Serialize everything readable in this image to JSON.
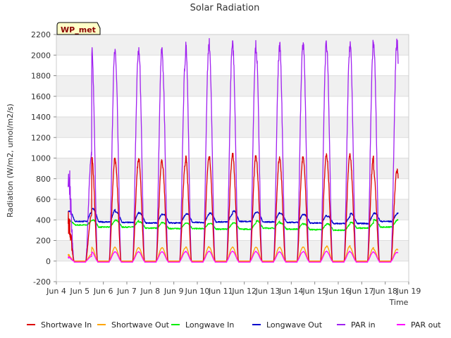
{
  "chart_data": {
    "type": "line",
    "title": "Solar Radiation",
    "xlabel": "Time",
    "ylabel": "Radiation (W/m2, umol/m2/s)",
    "badge": "WP_met",
    "ylim": [
      -200,
      2200
    ],
    "yticks": [
      -200,
      0,
      200,
      400,
      600,
      800,
      1000,
      1200,
      1400,
      1600,
      1800,
      2000,
      2200
    ],
    "xlim": [
      4,
      19
    ],
    "xticks": [
      {
        "v": 4,
        "label": "Jun 4"
      },
      {
        "v": 5,
        "label": "Jun 5"
      },
      {
        "v": 6,
        "label": "Jun 6"
      },
      {
        "v": 7,
        "label": "Jun 7"
      },
      {
        "v": 8,
        "label": "Jun 8"
      },
      {
        "v": 9,
        "label": "Jun 9"
      },
      {
        "v": 10,
        "label": "Jun 10"
      },
      {
        "v": 11,
        "label": "Jun 11"
      },
      {
        "v": 12,
        "label": "Jun 12"
      },
      {
        "v": 13,
        "label": "Jun 13"
      },
      {
        "v": 14,
        "label": "Jun 14"
      },
      {
        "v": 15,
        "label": "Jun 15"
      },
      {
        "v": 16,
        "label": "Jun 16"
      },
      {
        "v": 17,
        "label": "Jun 17"
      },
      {
        "v": 18,
        "label": "Jun 18"
      },
      {
        "v": 19,
        "label": "Jun 19"
      }
    ],
    "legend_position": "bottom",
    "x_start": 4.5,
    "x_end": 18.55,
    "series": [
      {
        "name": "Shortwave In",
        "color": "#dd0000",
        "kind": "diurnal",
        "night": 0,
        "peaks": [
          450,
          1010,
          980,
          1000,
          960,
          1020,
          1030,
          1040,
          1000,
          1010,
          1030,
          1040,
          1020,
          880
        ]
      },
      {
        "name": "Shortwave Out",
        "color": "#ffa500",
        "kind": "diurnal",
        "night": 0,
        "peaks": [
          65,
          135,
          130,
          130,
          130,
          140,
          135,
          135,
          135,
          135,
          140,
          150,
          130,
          115
        ]
      },
      {
        "name": "Longwave In",
        "color": "#00ee00",
        "kind": "wave",
        "base": [
          350,
          330,
          330,
          320,
          315,
          315,
          310,
          310,
          320,
          310,
          305,
          300,
          320,
          330
        ],
        "amp": [
          40,
          70,
          65,
          60,
          55,
          55,
          55,
          65,
          70,
          60,
          55,
          60,
          55,
          70
        ]
      },
      {
        "name": "Longwave Out",
        "color": "#0000cc",
        "kind": "wave",
        "base": [
          385,
          380,
          375,
          370,
          370,
          375,
          380,
          385,
          380,
          375,
          370,
          365,
          365,
          385
        ],
        "amp": [
          100,
          130,
          100,
          95,
          85,
          85,
          85,
          100,
          95,
          85,
          80,
          70,
          95,
          80
        ]
      },
      {
        "name": "PAR in",
        "color": "#a020f0",
        "kind": "diurnal",
        "night": 0,
        "peaks": [
          1050,
          2070,
          2050,
          2100,
          1990,
          2130,
          2130,
          2110,
          2070,
          2110,
          2140,
          2100,
          2130,
          2130
        ]
      },
      {
        "name": "PAR out",
        "color": "#ff00ff",
        "kind": "diurnal",
        "night": -10,
        "peaks": [
          45,
          90,
          90,
          90,
          90,
          95,
          95,
          95,
          90,
          90,
          95,
          95,
          90,
          85
        ]
      }
    ]
  }
}
